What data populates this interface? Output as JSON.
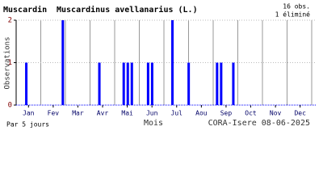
{
  "chart_data": {
    "type": "bar",
    "title": "Muscardin",
    "subtitle": "Muscardinus avellanarius (L.)",
    "annotations": [
      "16 obs.",
      "1 éliminé"
    ],
    "y_label": "Observations",
    "x_label": "Mois",
    "footer_left": "Par 5 jours",
    "footer_right": "CORA-Isere 08-06-2025",
    "x": [
      0,
      1,
      2,
      3,
      4,
      5,
      6,
      7,
      8,
      9,
      10,
      11,
      12,
      13,
      14,
      15,
      16,
      17,
      18,
      19,
      20,
      21,
      22,
      23,
      24,
      25,
      26,
      27,
      28,
      29,
      30,
      31,
      32,
      33,
      34,
      35,
      36,
      37,
      38,
      39,
      40,
      41,
      42,
      43,
      44,
      45,
      46,
      47,
      48,
      49,
      50,
      51,
      52,
      53,
      54,
      55,
      56,
      57,
      58,
      59,
      60,
      61,
      62,
      63,
      64,
      65,
      66,
      67,
      68,
      69,
      70,
      71,
      72
    ],
    "values": [
      0,
      0,
      1,
      0,
      0,
      0,
      0,
      0,
      0,
      0,
      0,
      2,
      0,
      0,
      0,
      0,
      0,
      0,
      0,
      0,
      1,
      0,
      0,
      0,
      0,
      0,
      1,
      1,
      1,
      0,
      0,
      0,
      1,
      1,
      0,
      0,
      0,
      0,
      2,
      0,
      0,
      0,
      1,
      0,
      0,
      0,
      0,
      0,
      0,
      1,
      1,
      0,
      0,
      1,
      0,
      0,
      0,
      0,
      0,
      0,
      0,
      0,
      0,
      0,
      0,
      0,
      0,
      0,
      0,
      0,
      0,
      0,
      0
    ],
    "color": "#0000ff",
    "xlim": [
      0,
      74
    ],
    "xticks": [
      {
        "value": 3.04,
        "label": "Jan"
      },
      {
        "value": 9.13,
        "label": "Fev"
      },
      {
        "value": 15.21,
        "label": "Mar"
      },
      {
        "value": 21.29,
        "label": "Avr"
      },
      {
        "value": 27.38,
        "label": "Mai"
      },
      {
        "value": 33.46,
        "label": "Jun"
      },
      {
        "value": 39.54,
        "label": "Jul"
      },
      {
        "value": 45.63,
        "label": "Aou"
      },
      {
        "value": 51.71,
        "label": "Sep"
      },
      {
        "value": 57.79,
        "label": "Oct"
      },
      {
        "value": 63.88,
        "label": "Nov"
      },
      {
        "value": 69.96,
        "label": "Dec"
      }
    ],
    "ylim": [
      0,
      2
    ],
    "yticks": [
      0,
      1,
      2
    ],
    "grid": true
  }
}
